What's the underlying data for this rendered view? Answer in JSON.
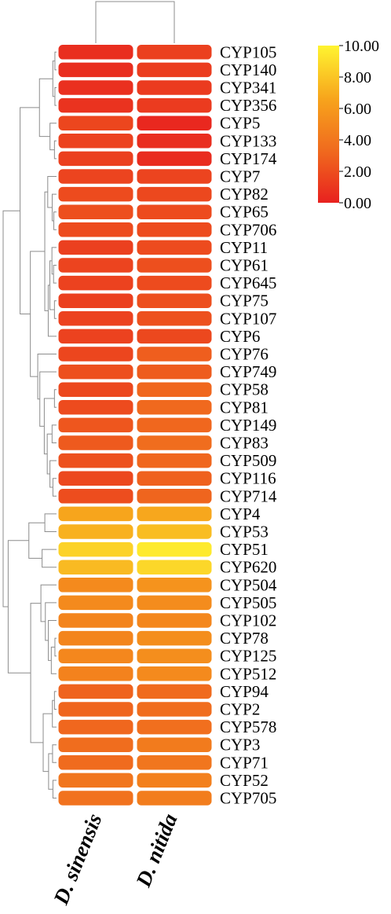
{
  "chart_data": {
    "type": "heatmap",
    "title": "",
    "columns": [
      "D. sinensis",
      "D. nitida"
    ],
    "rows": [
      "CYP105",
      "CYP140",
      "CYP341",
      "CYP356",
      "CYP5",
      "CYP133",
      "CYP174",
      "CYP7",
      "CYP82",
      "CYP65",
      "CYP706",
      "CYP11",
      "CYP61",
      "CYP645",
      "CYP75",
      "CYP107",
      "CYP6",
      "CYP76",
      "CYP749",
      "CYP58",
      "CYP81",
      "CYP149",
      "CYP83",
      "CYP509",
      "CYP116",
      "CYP714",
      "CYP4",
      "CYP53",
      "CYP51",
      "CYP620",
      "CYP504",
      "CYP505",
      "CYP102",
      "CYP78",
      "CYP125",
      "CYP512",
      "CYP94",
      "CYP2",
      "CYP578",
      "CYP3",
      "CYP71",
      "CYP52",
      "CYP705"
    ],
    "values": [
      [
        0.6,
        1.4
      ],
      [
        0.6,
        1.3
      ],
      [
        0.7,
        1.2
      ],
      [
        0.8,
        1.2
      ],
      [
        1.7,
        0.3
      ],
      [
        1.5,
        0.6
      ],
      [
        1.4,
        0.5
      ],
      [
        1.6,
        1.6
      ],
      [
        1.9,
        1.8
      ],
      [
        2.1,
        1.9
      ],
      [
        1.9,
        1.9
      ],
      [
        1.4,
        1.9
      ],
      [
        1.6,
        2.1
      ],
      [
        1.5,
        1.9
      ],
      [
        1.4,
        2.1
      ],
      [
        1.5,
        2.2
      ],
      [
        1.5,
        1.8
      ],
      [
        1.7,
        2.8
      ],
      [
        2.1,
        2.7
      ],
      [
        1.8,
        3.2
      ],
      [
        1.9,
        3.3
      ],
      [
        2.4,
        3.2
      ],
      [
        2.6,
        3.5
      ],
      [
        2.2,
        3.2
      ],
      [
        1.8,
        2.9
      ],
      [
        2.0,
        3.1
      ],
      [
        6.7,
        6.8
      ],
      [
        7.2,
        7.7
      ],
      [
        8.6,
        9.6
      ],
      [
        7.6,
        8.8
      ],
      [
        5.2,
        5.7
      ],
      [
        5.2,
        5.3
      ],
      [
        4.8,
        5.0
      ],
      [
        4.9,
        5.4
      ],
      [
        5.0,
        5.4
      ],
      [
        4.7,
        5.2
      ],
      [
        3.0,
        3.4
      ],
      [
        3.1,
        3.5
      ],
      [
        3.2,
        3.6
      ],
      [
        3.5,
        4.3
      ],
      [
        3.4,
        4.0
      ],
      [
        4.0,
        4.6
      ],
      [
        3.8,
        4.4
      ]
    ],
    "color_scale": {
      "min": 0,
      "max": 10,
      "colors": [
        "#e8211f",
        "#f06a1e",
        "#f7a41c",
        "#fff430"
      ],
      "ticks": [
        "0.00",
        "2.00",
        "4.00",
        "6.00",
        "8.00",
        "10.00"
      ]
    },
    "row_dendrogram": true,
    "column_dendrogram": true,
    "legend": "top-right"
  }
}
